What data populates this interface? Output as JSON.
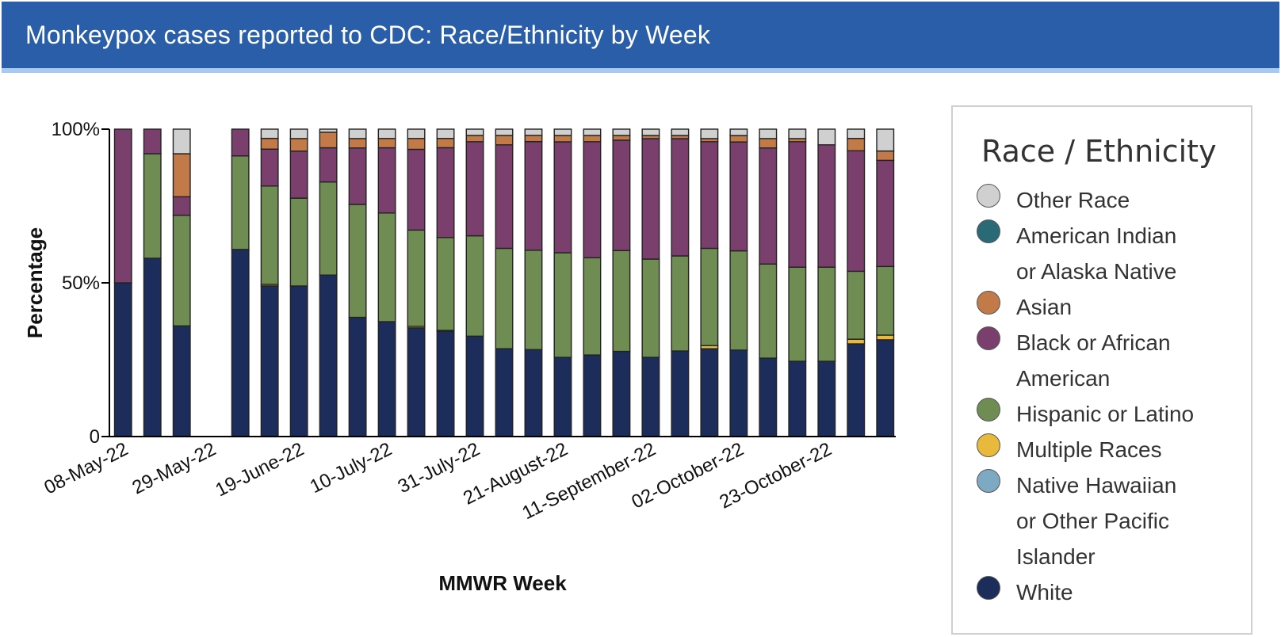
{
  "header": {
    "title": "Monkeypox cases reported to CDC: Race/Ethnicity by Week"
  },
  "legend": {
    "title": "Race / Ethnicity",
    "items": [
      {
        "label": "Other Race",
        "color": "#d0d0d0"
      },
      {
        "label": "American Indian or Alaska Native",
        "color": "#2a6a77"
      },
      {
        "label": "Asian",
        "color": "#c27a49"
      },
      {
        "label": "Black or African American",
        "color": "#7b3f6e"
      },
      {
        "label": "Hispanic or Latino",
        "color": "#6f8c52"
      },
      {
        "label": "Multiple Races",
        "color": "#e8b93a"
      },
      {
        "label": "Native Hawaiian or Other Pacific Islander",
        "color": "#7da9c3"
      },
      {
        "label": "White",
        "color": "#1c2d5c"
      }
    ]
  },
  "chart_data": {
    "type": "bar",
    "stacked": true,
    "title": "",
    "xlabel": "MMWR Week",
    "ylabel": "Percentage",
    "ylim": [
      0,
      100
    ],
    "y_ticks": [
      "0",
      "50%",
      "100%"
    ],
    "x_tick_labels": [
      "08-May-22",
      "29-May-22",
      "19-June-22",
      "10-July-22",
      "31-July-22",
      "21-August-22",
      "11-September-22",
      "02-October-22",
      "23-October-22"
    ],
    "x_tick_every": 3,
    "grid": false,
    "legend_position": "right",
    "categories": [
      "08-May-22",
      "15-May-22",
      "22-May-22",
      "29-May-22",
      "05-June-22",
      "12-June-22",
      "19-June-22",
      "26-June-22",
      "03-July-22",
      "10-July-22",
      "17-July-22",
      "24-July-22",
      "31-July-22",
      "07-August-22",
      "14-August-22",
      "21-August-22",
      "28-August-22",
      "04-September-22",
      "11-September-22",
      "18-September-22",
      "25-September-22",
      "02-October-22",
      "09-October-22",
      "16-October-22",
      "23-October-22",
      "30-October-22",
      "06-November-22"
    ],
    "series": [
      {
        "name": "White",
        "color": "#1c2d5c",
        "values": [
          50,
          58,
          36,
          0,
          56,
          49,
          48,
          52,
          38,
          37,
          35,
          34,
          32,
          28,
          28,
          25,
          26,
          27,
          25,
          27,
          28,
          27,
          25,
          24,
          24,
          30,
          31
        ]
      },
      {
        "name": "Native Hawaiian or Other Pacific Islander",
        "color": "#7da9c3",
        "values": [
          0,
          0,
          0,
          0,
          0,
          0,
          0,
          0,
          0,
          0,
          0,
          0,
          0,
          0,
          0,
          0,
          0,
          0,
          0,
          0,
          0,
          0,
          0,
          0,
          0,
          0,
          0
        ]
      },
      {
        "name": "Multiple Races",
        "color": "#e8b93a",
        "values": [
          0,
          0,
          0,
          0,
          0,
          0.5,
          0,
          0,
          0,
          0,
          0.5,
          0.3,
          0,
          0,
          0,
          0,
          0,
          0,
          0,
          0,
          1,
          0,
          0,
          0,
          0,
          1.5,
          1.5
        ]
      },
      {
        "name": "Hispanic or Latino",
        "color": "#6f8c52",
        "values": [
          0,
          34,
          36,
          0,
          28,
          32,
          28,
          30,
          36,
          35,
          31,
          30,
          32,
          32,
          32,
          33,
          31,
          32,
          31,
          30,
          31,
          31,
          30,
          30,
          30,
          22,
          22
        ]
      },
      {
        "name": "Black or African American",
        "color": "#7b3f6e",
        "values": [
          50,
          8,
          6,
          0,
          8,
          12,
          15,
          11,
          18,
          21,
          26,
          29,
          30,
          33,
          35,
          35,
          37,
          35,
          38,
          37,
          34,
          34,
          37,
          40,
          39,
          39,
          34
        ]
      },
      {
        "name": "Asian",
        "color": "#c27a49",
        "values": [
          0,
          0,
          14,
          0,
          0,
          3.5,
          4,
          5,
          3,
          3,
          3.5,
          3,
          2,
          3,
          2,
          2,
          2,
          1.5,
          1,
          1,
          1,
          2,
          3,
          1,
          0,
          4,
          3
        ]
      },
      {
        "name": "American Indian or Alaska Native",
        "color": "#2a6a77",
        "values": [
          0,
          0,
          0,
          0,
          0,
          0,
          0,
          0,
          0,
          0,
          0,
          0,
          0,
          0,
          0,
          0,
          0,
          0,
          0,
          0,
          0,
          0,
          0,
          0,
          0,
          0,
          0
        ]
      },
      {
        "name": "Other Race",
        "color": "#d0d0d0",
        "values": [
          0,
          0,
          8,
          0,
          0,
          3,
          3,
          1,
          3,
          3,
          3,
          3,
          2,
          2,
          2,
          2,
          2,
          2,
          2,
          2,
          3,
          2,
          3,
          3,
          5,
          3,
          7
        ]
      }
    ]
  }
}
